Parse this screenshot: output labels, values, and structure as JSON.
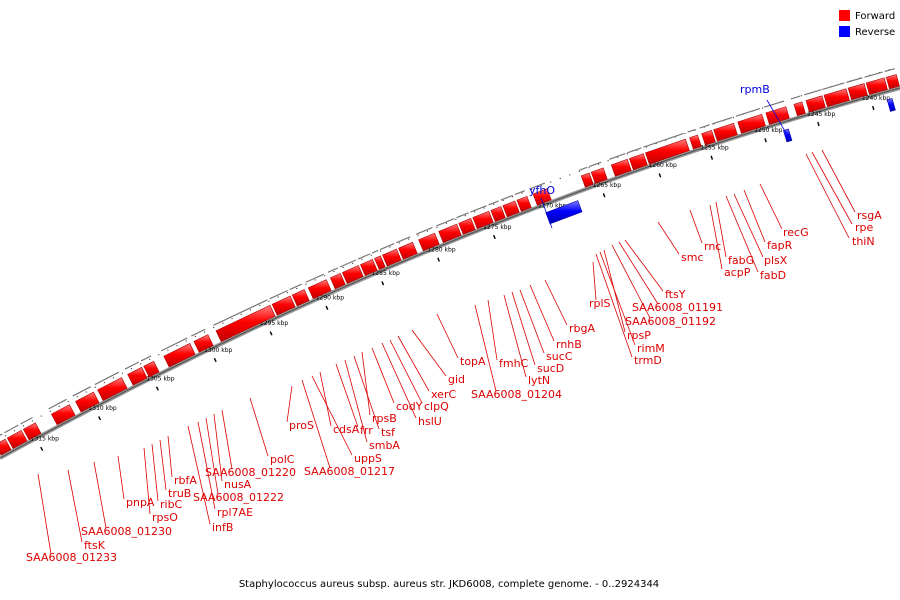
{
  "legend": {
    "forward": {
      "label": "Forward",
      "color": "#ff0000"
    },
    "reverse": {
      "label": "Reverse",
      "color": "#0000ff"
    }
  },
  "caption": "Staphylococcus aureus subsp. aureus str. JKD6008, complete genome. - 0..2924344",
  "genome_track": {
    "unit": "kbp",
    "ticks_kbp": [
      1240,
      1245,
      1250,
      1255,
      1260,
      1265,
      1270,
      1275,
      1280,
      1285,
      1290,
      1295,
      1300,
      1305,
      1310,
      1315
    ],
    "tick_labels": [
      "1240 kbp",
      "1245 kbp",
      "1250 kbp",
      "1255 kbp",
      "1260 kbp",
      "1265 kbp",
      "1270 kbp",
      "1275 kbp",
      "1280 kbp",
      "1285 kbp",
      "1290 kbp",
      "1295 kbp",
      "1300 kbp",
      "1305 kbp",
      "1310 kbp",
      "1315 kbp"
    ]
  },
  "genes": [
    {
      "name": "rpmB",
      "strand": "reverse"
    },
    {
      "name": "yfhO",
      "strand": "reverse"
    },
    {
      "name": "rsgA",
      "strand": "forward"
    },
    {
      "name": "rpe",
      "strand": "forward"
    },
    {
      "name": "thiN",
      "strand": "forward"
    },
    {
      "name": "recG",
      "strand": "forward"
    },
    {
      "name": "fapR",
      "strand": "forward"
    },
    {
      "name": "plsX",
      "strand": "forward"
    },
    {
      "name": "fabD",
      "strand": "forward"
    },
    {
      "name": "fabG",
      "strand": "forward"
    },
    {
      "name": "acpP",
      "strand": "forward"
    },
    {
      "name": "rnc",
      "strand": "forward"
    },
    {
      "name": "smc",
      "strand": "forward"
    },
    {
      "name": "ftsY",
      "strand": "forward"
    },
    {
      "name": "SAA6008_01191",
      "strand": "forward"
    },
    {
      "name": "SAA6008_01192",
      "strand": "forward"
    },
    {
      "name": "rpsP",
      "strand": "forward"
    },
    {
      "name": "rimM",
      "strand": "forward"
    },
    {
      "name": "trmD",
      "strand": "forward"
    },
    {
      "name": "rplS",
      "strand": "forward"
    },
    {
      "name": "rbgA",
      "strand": "forward"
    },
    {
      "name": "rnhB",
      "strand": "forward"
    },
    {
      "name": "sucC",
      "strand": "forward"
    },
    {
      "name": "sucD",
      "strand": "forward"
    },
    {
      "name": "lytN",
      "strand": "forward"
    },
    {
      "name": "fmhC",
      "strand": "forward"
    },
    {
      "name": "SAA6008_01204",
      "strand": "forward"
    },
    {
      "name": "topA",
      "strand": "forward"
    },
    {
      "name": "gid",
      "strand": "forward"
    },
    {
      "name": "xerC",
      "strand": "forward"
    },
    {
      "name": "clpQ",
      "strand": "forward"
    },
    {
      "name": "hslU",
      "strand": "forward"
    },
    {
      "name": "codY",
      "strand": "forward"
    },
    {
      "name": "rpsB",
      "strand": "forward"
    },
    {
      "name": "tsf",
      "strand": "forward"
    },
    {
      "name": "smbA",
      "strand": "forward"
    },
    {
      "name": "frr",
      "strand": "forward"
    },
    {
      "name": "cdsA",
      "strand": "forward"
    },
    {
      "name": "uppS",
      "strand": "forward"
    },
    {
      "name": "SAA6008_01217",
      "strand": "forward"
    },
    {
      "name": "proS",
      "strand": "forward"
    },
    {
      "name": "polC",
      "strand": "forward"
    },
    {
      "name": "SAA6008_01220",
      "strand": "forward"
    },
    {
      "name": "nusA",
      "strand": "forward"
    },
    {
      "name": "SAA6008_01222",
      "strand": "forward"
    },
    {
      "name": "rpl7AE",
      "strand": "forward"
    },
    {
      "name": "infB",
      "strand": "forward"
    },
    {
      "name": "rbfA",
      "strand": "forward"
    },
    {
      "name": "truB",
      "strand": "forward"
    },
    {
      "name": "ribC",
      "strand": "forward"
    },
    {
      "name": "rpsO",
      "strand": "forward"
    },
    {
      "name": "pnpA",
      "strand": "forward"
    },
    {
      "name": "SAA6008_01230",
      "strand": "forward"
    },
    {
      "name": "ftsK",
      "strand": "forward"
    },
    {
      "name": "SAA6008_01233",
      "strand": "forward"
    }
  ]
}
